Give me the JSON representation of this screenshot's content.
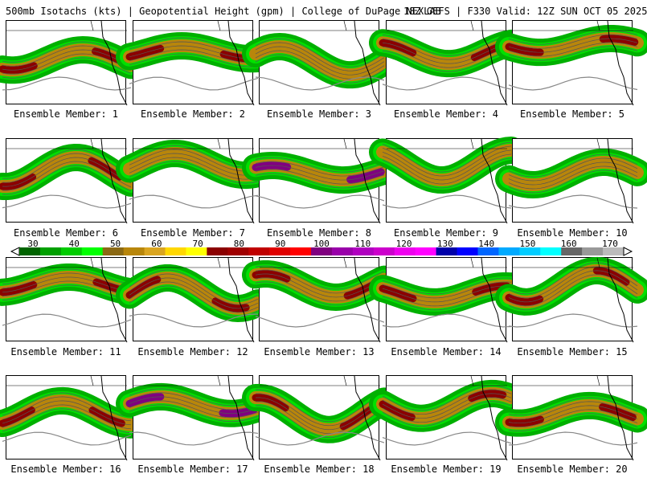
{
  "header": {
    "left": "500mb Isotachs (kts) | Geopotential Height (gpm) | College of DuPage NEXLAB",
    "right": "18Z GEFS | F330 Valid: 12Z SUN OCT 05 2025"
  },
  "panels": [
    {
      "label": "Ensemble Member: 1",
      "jet_core": "#8b0000"
    },
    {
      "label": "Ensemble Member: 2",
      "jet_core": "#8b0000"
    },
    {
      "label": "Ensemble Member: 3",
      "jet_core": "#b8860b"
    },
    {
      "label": "Ensemble Member: 4",
      "jet_core": "#8b0000"
    },
    {
      "label": "Ensemble Member: 5",
      "jet_core": "#8b0000"
    },
    {
      "label": "Ensemble Member: 6",
      "jet_core": "#8b0000"
    },
    {
      "label": "Ensemble Member: 7",
      "jet_core": "#b8860b"
    },
    {
      "label": "Ensemble Member: 8",
      "jet_core": "#800080"
    },
    {
      "label": "Ensemble Member: 9",
      "jet_core": "#b8860b"
    },
    {
      "label": "Ensemble Member: 10",
      "jet_core": "#b8860b"
    },
    {
      "label": "Ensemble Member: 11",
      "jet_core": "#8b0000"
    },
    {
      "label": "Ensemble Member: 12",
      "jet_core": "#8b0000"
    },
    {
      "label": "Ensemble Member: 13",
      "jet_core": "#8b0000"
    },
    {
      "label": "Ensemble Member: 14",
      "jet_core": "#8b0000"
    },
    {
      "label": "Ensemble Member: 15",
      "jet_core": "#8b0000"
    },
    {
      "label": "Ensemble Member: 16",
      "jet_core": "#8b0000"
    },
    {
      "label": "Ensemble Member: 17",
      "jet_core": "#800080"
    },
    {
      "label": "Ensemble Member: 18",
      "jet_core": "#8b0000"
    },
    {
      "label": "Ensemble Member: 19",
      "jet_core": "#8b0000"
    },
    {
      "label": "Ensemble Member: 20",
      "jet_core": "#8b0000"
    }
  ],
  "colorbar": {
    "labels": [
      "30",
      "40",
      "50",
      "60",
      "70",
      "80",
      "90",
      "100",
      "110",
      "120",
      "130",
      "140",
      "150",
      "160",
      "170"
    ],
    "label_values": [
      30,
      40,
      50,
      60,
      70,
      80,
      90,
      100,
      110,
      120,
      130,
      140,
      150,
      160,
      170
    ],
    "min": 30,
    "max": 170,
    "colors": [
      "#006400",
      "#00a000",
      "#00cc00",
      "#00ff00",
      "#8b6914",
      "#b8860b",
      "#daa520",
      "#ffd700",
      "#ffff00",
      "#8b0000",
      "#a00000",
      "#c00000",
      "#e00000",
      "#ff0000",
      "#800080",
      "#9900aa",
      "#b000c0",
      "#cc00cc",
      "#ee00ee",
      "#ff00ff",
      "#0000aa",
      "#0000ff",
      "#0066ff",
      "#00aaff",
      "#00ccff",
      "#00ffff",
      "#666666",
      "#999999",
      "#bbbbbb"
    ]
  }
}
